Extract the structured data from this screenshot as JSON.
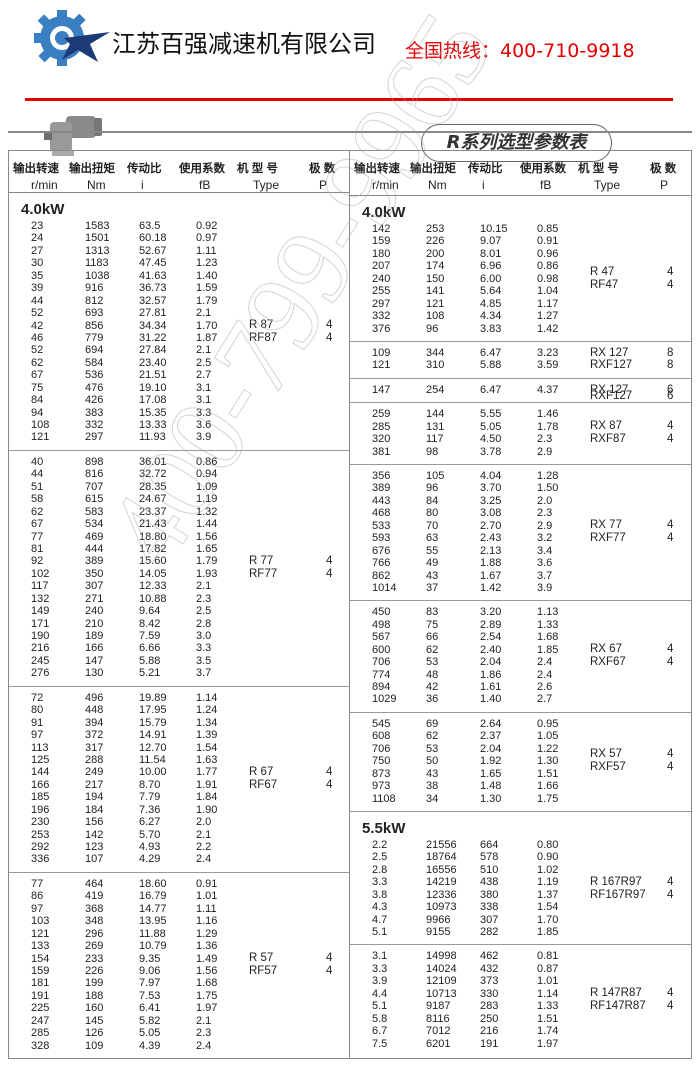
{
  "header": {
    "company": "江苏百强减速机有限公司",
    "hotline": "全国热线：400-710-9918",
    "title": "R系列选型参数表",
    "brand_colors": {
      "red": "#e60000",
      "logo_blue": "#3a7fc1",
      "logo_navy": "#1d3a78"
    }
  },
  "columns": {
    "zh": [
      "输出转速",
      "输出扭矩",
      "传动比",
      "使用系数",
      "机 型 号",
      "极  数"
    ],
    "en": [
      "r/min",
      "Nm",
      "i",
      "fB",
      "Type",
      "P"
    ]
  },
  "watermark": "400-799-9965",
  "left": [
    {
      "power": "4.0kW",
      "types": [
        "R  87",
        "RF87"
      ],
      "poles": [
        "4",
        "4"
      ],
      "rows": [
        [
          "23",
          "1583",
          "63.5",
          "0.92"
        ],
        [
          "24",
          "1501",
          "60.18",
          "0.97"
        ],
        [
          "27",
          "1313",
          "52.67",
          "1.11"
        ],
        [
          "30",
          "1183",
          "47.45",
          "1.23"
        ],
        [
          "35",
          "1038",
          "41.63",
          "1.40"
        ],
        [
          "39",
          "916",
          "36.73",
          "1.59"
        ],
        [
          "44",
          "812",
          "32.57",
          "1.79"
        ],
        [
          "52",
          "693",
          "27.81",
          "2.1"
        ],
        [
          "42",
          "856",
          "34.34",
          "1.70"
        ],
        [
          "46",
          "779",
          "31.22",
          "1.87"
        ],
        [
          "52",
          "694",
          "27.84",
          "2.1"
        ],
        [
          "62",
          "584",
          "23.40",
          "2.5"
        ],
        [
          "67",
          "536",
          "21.51",
          "2.7"
        ],
        [
          "75",
          "476",
          "19.10",
          "3.1"
        ],
        [
          "84",
          "426",
          "17.08",
          "3.1"
        ],
        [
          "94",
          "383",
          "15.35",
          "3.3"
        ],
        [
          "108",
          "332",
          "13.33",
          "3.6"
        ],
        [
          "121",
          "297",
          "11.93",
          "3.9"
        ]
      ]
    },
    {
      "types": [
        "R  77",
        "RF77"
      ],
      "poles": [
        "4",
        "4"
      ],
      "rows": [
        [
          "40",
          "898",
          "36.01",
          "0.86"
        ],
        [
          "44",
          "816",
          "32.72",
          "0.94"
        ],
        [
          "51",
          "707",
          "28.35",
          "1.09"
        ],
        [
          "58",
          "615",
          "24.67",
          "1.19"
        ],
        [
          "62",
          "583",
          "23.37",
          "1.32"
        ],
        [
          "67",
          "534",
          "21.43",
          "1.44"
        ],
        [
          "77",
          "469",
          "18.80",
          "1.56"
        ],
        [
          "81",
          "444",
          "17.82",
          "1.65"
        ],
        [
          "92",
          "389",
          "15.60",
          "1.79"
        ],
        [
          "102",
          "350",
          "14.05",
          "1.93"
        ],
        [
          "117",
          "307",
          "12.33",
          "2.1"
        ],
        [
          "132",
          "271",
          "10.88",
          "2.3"
        ],
        [
          "149",
          "240",
          "9.64",
          "2.5"
        ],
        [
          "171",
          "210",
          "8.42",
          "2.8"
        ],
        [
          "190",
          "189",
          "7.59",
          "3.0"
        ],
        [
          "216",
          "166",
          "6.66",
          "3.3"
        ],
        [
          "245",
          "147",
          "5.88",
          "3.5"
        ],
        [
          "276",
          "130",
          "5.21",
          "3.7"
        ]
      ]
    },
    {
      "types": [
        "R  67",
        "RF67"
      ],
      "poles": [
        "4",
        "4"
      ],
      "rows": [
        [
          "72",
          "496",
          "19.89",
          "1.14"
        ],
        [
          "80",
          "448",
          "17.95",
          "1.24"
        ],
        [
          "91",
          "394",
          "15.79",
          "1.34"
        ],
        [
          "97",
          "372",
          "14.91",
          "1.39"
        ],
        [
          "113",
          "317",
          "12.70",
          "1.54"
        ],
        [
          "125",
          "288",
          "11.54",
          "1.63"
        ],
        [
          "144",
          "249",
          "10.00",
          "1.77"
        ],
        [
          "166",
          "217",
          "8.70",
          "1.91"
        ],
        [
          "185",
          "194",
          "7.79",
          "1.84"
        ],
        [
          "196",
          "184",
          "7.36",
          "1.90"
        ],
        [
          "230",
          "156",
          "6.27",
          "2.0"
        ],
        [
          "253",
          "142",
          "5.70",
          "2.1"
        ],
        [
          "292",
          "123",
          "4.93",
          "2.2"
        ],
        [
          "336",
          "107",
          "4.29",
          "2.4"
        ]
      ]
    },
    {
      "types": [
        "R  57",
        "RF57"
      ],
      "poles": [
        "4",
        "4"
      ],
      "rows": [
        [
          "77",
          "464",
          "18.60",
          "0.91"
        ],
        [
          "86",
          "419",
          "16.79",
          "1.01"
        ],
        [
          "97",
          "368",
          "14.77",
          "1.11"
        ],
        [
          "103",
          "348",
          "13.95",
          "1.16"
        ],
        [
          "121",
          "296",
          "11.88",
          "1.29"
        ],
        [
          "133",
          "269",
          "10.79",
          "1.36"
        ],
        [
          "154",
          "233",
          "9.35",
          "1.49"
        ],
        [
          "159",
          "226",
          "9.06",
          "1.56"
        ],
        [
          "181",
          "199",
          "7.97",
          "1.68"
        ],
        [
          "191",
          "188",
          "7.53",
          "1.75"
        ],
        [
          "225",
          "160",
          "6.41",
          "1.97"
        ],
        [
          "247",
          "145",
          "5.82",
          "2.1"
        ],
        [
          "285",
          "126",
          "5.05",
          "2.3"
        ],
        [
          "328",
          "109",
          "4.39",
          "2.4"
        ]
      ]
    }
  ],
  "right": [
    {
      "power": "4.0kW",
      "types": [
        "R  47",
        "RF47"
      ],
      "poles": [
        "4",
        "4"
      ],
      "rows": [
        [
          "142",
          "253",
          "10.15",
          "0.85"
        ],
        [
          "159",
          "226",
          "9.07",
          "0.91"
        ],
        [
          "180",
          "200",
          "8.01",
          "0.96"
        ],
        [
          "207",
          "174",
          "6.96",
          "0.86"
        ],
        [
          "240",
          "150",
          "6.00",
          "0.98"
        ],
        [
          "255",
          "141",
          "5.64",
          "1.04"
        ],
        [
          "297",
          "121",
          "4.85",
          "1.17"
        ],
        [
          "332",
          "108",
          "4.34",
          "1.27"
        ],
        [
          "376",
          "96",
          "3.83",
          "1.42"
        ]
      ]
    },
    {
      "types": [
        "RX  127",
        "RXF127"
      ],
      "poles": [
        "8",
        "8"
      ],
      "rows": [
        [
          "109",
          "344",
          "6.47",
          "3.23"
        ],
        [
          "121",
          "310",
          "5.88",
          "3.59"
        ]
      ]
    },
    {
      "types": [
        "RX  127",
        "RXF127"
      ],
      "poles": [
        "6",
        "6"
      ],
      "rows": [
        [
          "147",
          "254",
          "6.47",
          "4.37"
        ]
      ]
    },
    {
      "types": [
        "RX  87",
        "RXF87"
      ],
      "poles": [
        "4",
        "4"
      ],
      "rows": [
        [
          "259",
          "144",
          "5.55",
          "1.46"
        ],
        [
          "285",
          "131",
          "5.05",
          "1.78"
        ],
        [
          "320",
          "117",
          "4.50",
          "2.3"
        ],
        [
          "381",
          "98",
          "3.78",
          "2.9"
        ]
      ]
    },
    {
      "types": [
        "RX  77",
        "RXF77"
      ],
      "poles": [
        "4",
        "4"
      ],
      "rows": [
        [
          "356",
          "105",
          "4.04",
          "1.28"
        ],
        [
          "389",
          "96",
          "3.70",
          "1.50"
        ],
        [
          "443",
          "84",
          "3.25",
          "2.0"
        ],
        [
          "468",
          "80",
          "3.08",
          "2.3"
        ],
        [
          "533",
          "70",
          "2.70",
          "2.9"
        ],
        [
          "593",
          "63",
          "2.43",
          "3.2"
        ],
        [
          "676",
          "55",
          "2.13",
          "3.4"
        ],
        [
          "766",
          "49",
          "1.88",
          "3.6"
        ],
        [
          "862",
          "43",
          "1.67",
          "3.7"
        ],
        [
          "1014",
          "37",
          "1.42",
          "3.9"
        ]
      ]
    },
    {
      "types": [
        "RX  67",
        "RXF67"
      ],
      "poles": [
        "4",
        "4"
      ],
      "rows": [
        [
          "450",
          "83",
          "3.20",
          "1.13"
        ],
        [
          "498",
          "75",
          "2.89",
          "1.33"
        ],
        [
          "567",
          "66",
          "2.54",
          "1.68"
        ],
        [
          "600",
          "62",
          "2.40",
          "1.85"
        ],
        [
          "706",
          "53",
          "2.04",
          "2.4"
        ],
        [
          "774",
          "48",
          "1.86",
          "2.4"
        ],
        [
          "894",
          "42",
          "1.61",
          "2.6"
        ],
        [
          "1029",
          "36",
          "1.40",
          "2.7"
        ]
      ]
    },
    {
      "types": [
        "RX  57",
        "RXF57"
      ],
      "poles": [
        "4",
        "4"
      ],
      "rows": [
        [
          "545",
          "69",
          "2.64",
          "0.95"
        ],
        [
          "608",
          "62",
          "2.37",
          "1.05"
        ],
        [
          "706",
          "53",
          "2.04",
          "1.22"
        ],
        [
          "750",
          "50",
          "1.92",
          "1.30"
        ],
        [
          "873",
          "43",
          "1.65",
          "1.51"
        ],
        [
          "973",
          "38",
          "1.48",
          "1.66"
        ],
        [
          "1108",
          "34",
          "1.30",
          "1.75"
        ]
      ]
    },
    {
      "power": "5.5kW",
      "types": [
        "R  167R97",
        "RF167R97"
      ],
      "poles": [
        "4",
        "4"
      ],
      "rows": [
        [
          "2.2",
          "21556",
          "664",
          "0.80"
        ],
        [
          "2.5",
          "18764",
          "578",
          "0.90"
        ],
        [
          "2.8",
          "16556",
          "510",
          "1.02"
        ],
        [
          "3.3",
          "14219",
          "438",
          "1.19"
        ],
        [
          "3.8",
          "12336",
          "380",
          "1.37"
        ],
        [
          "4.3",
          "10973",
          "338",
          "1.54"
        ],
        [
          "4.7",
          "9966",
          "307",
          "1.70"
        ],
        [
          "5.1",
          "9155",
          "282",
          "1.85"
        ]
      ]
    },
    {
      "types": [
        "R  147R87",
        "RF147R87"
      ],
      "poles": [
        "4",
        "4"
      ],
      "rows": [
        [
          "3.1",
          "14998",
          "462",
          "0.81"
        ],
        [
          "3.3",
          "14024",
          "432",
          "0.87"
        ],
        [
          "3.9",
          "12109",
          "373",
          "1.01"
        ],
        [
          "4.4",
          "10713",
          "330",
          "1.14"
        ],
        [
          "5.1",
          "9187",
          "283",
          "1.33"
        ],
        [
          "5.8",
          "8116",
          "250",
          "1.51"
        ],
        [
          "6.7",
          "7012",
          "216",
          "1.74"
        ],
        [
          "7.5",
          "6201",
          "191",
          "1.97"
        ]
      ]
    }
  ]
}
